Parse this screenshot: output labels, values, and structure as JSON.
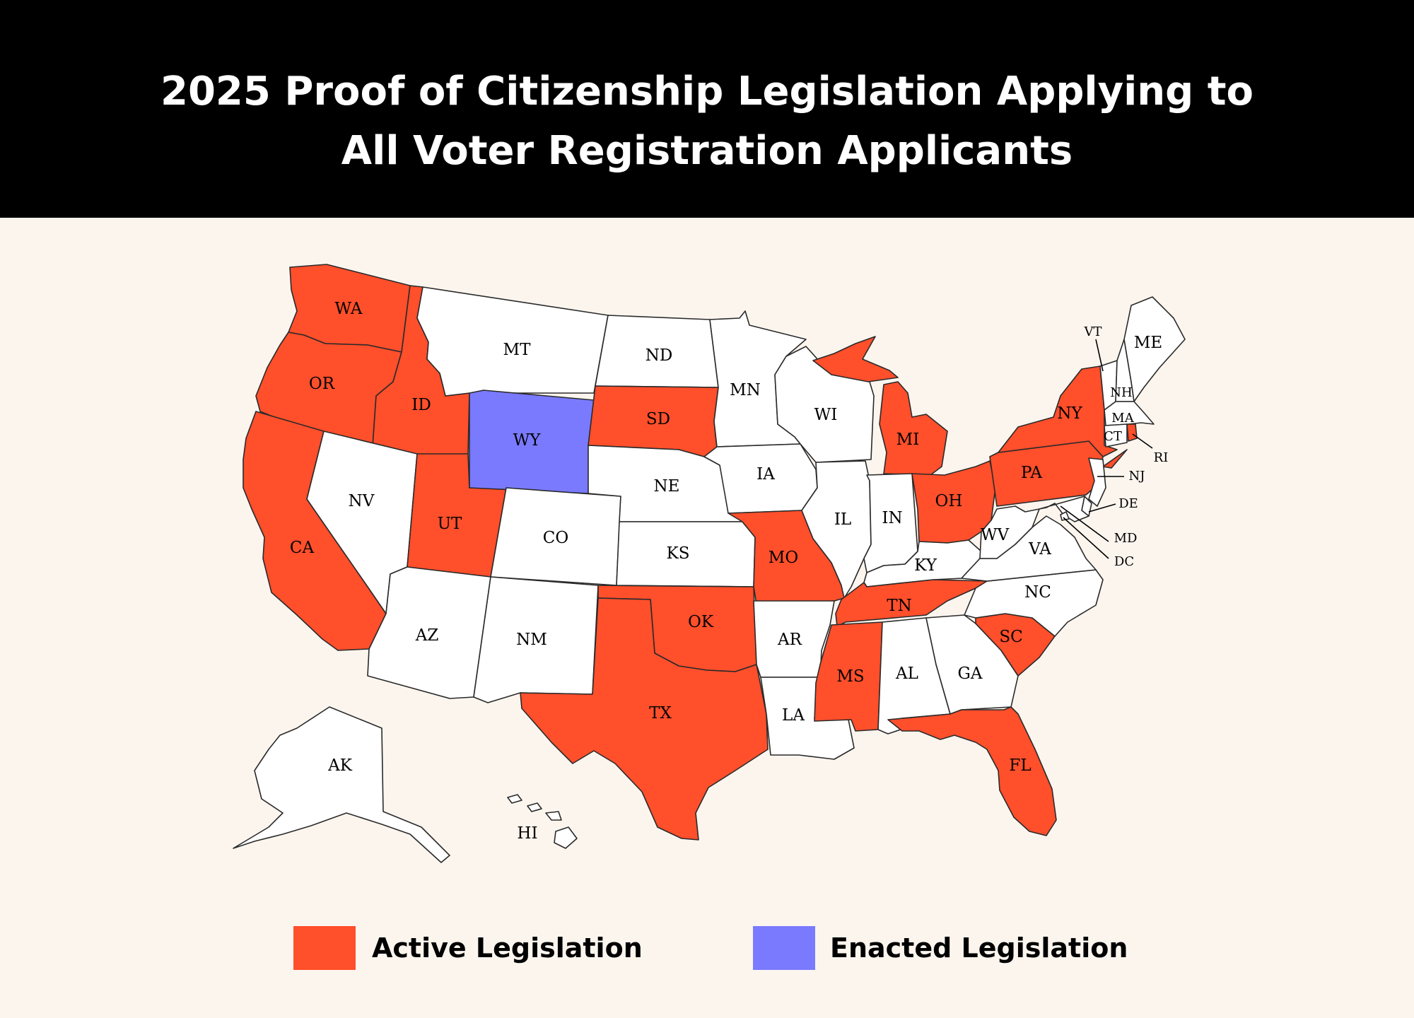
{
  "title": {
    "line1": "2025 Proof of Citizenship Legislation Applying to",
    "line2": "All Voter Registration Applicants"
  },
  "colors": {
    "active": "#ff4f2b",
    "enacted": "#7a7aff",
    "none": "#ffffff",
    "background": "#fbf5ee",
    "header": "#000000"
  },
  "legend": {
    "active_label": "Active Legislation",
    "enacted_label": "Enacted Legislation"
  },
  "map_data": {
    "status_by_state": {
      "WA": "active",
      "OR": "active",
      "CA": "active",
      "ID": "active",
      "UT": "active",
      "WY": "enacted",
      "SD": "active",
      "MO": "active",
      "OK": "active",
      "TX": "active",
      "MS": "active",
      "TN": "active",
      "MI": "active",
      "OH": "active",
      "PA": "active",
      "NY": "active",
      "SC": "active",
      "FL": "active",
      "RI": "active",
      "NV": "none",
      "AZ": "none",
      "MT": "none",
      "CO": "none",
      "NM": "none",
      "ND": "none",
      "NE": "none",
      "KS": "none",
      "MN": "none",
      "IA": "none",
      "AR": "none",
      "LA": "none",
      "WI": "none",
      "IL": "none",
      "IN": "none",
      "KY": "none",
      "AL": "none",
      "GA": "none",
      "WV": "none",
      "VA": "none",
      "NC": "none",
      "ME": "none",
      "VT": "none",
      "NH": "none",
      "MA": "none",
      "CT": "none",
      "NJ": "none",
      "DE": "none",
      "MD": "none",
      "DC": "none",
      "AK": "none",
      "HI": "none"
    },
    "labels": {
      "WA": "WA",
      "OR": "OR",
      "CA": "CA",
      "ID": "ID",
      "NV": "NV",
      "UT": "UT",
      "AZ": "AZ",
      "MT": "MT",
      "WY": "WY",
      "CO": "CO",
      "NM": "NM",
      "ND": "ND",
      "SD": "SD",
      "NE": "NE",
      "KS": "KS",
      "OK": "OK",
      "TX": "TX",
      "MN": "MN",
      "IA": "IA",
      "MO": "MO",
      "AR": "AR",
      "LA": "LA",
      "WI": "WI",
      "IL": "IL",
      "MI": "MI",
      "IN": "IN",
      "OH": "OH",
      "KY": "KY",
      "TN": "TN",
      "MS": "MS",
      "AL": "AL",
      "GA": "GA",
      "FL": "FL",
      "SC": "SC",
      "NC": "NC",
      "VA": "VA",
      "WV": "WV",
      "PA": "PA",
      "NY": "NY",
      "ME": "ME",
      "VT": "VT",
      "NH": "NH",
      "MA": "MA",
      "CT": "CT",
      "RI": "RI",
      "NJ": "NJ",
      "DE": "DE",
      "MD": "MD",
      "DC": "DC",
      "AK": "AK",
      "HI": "HI"
    }
  }
}
